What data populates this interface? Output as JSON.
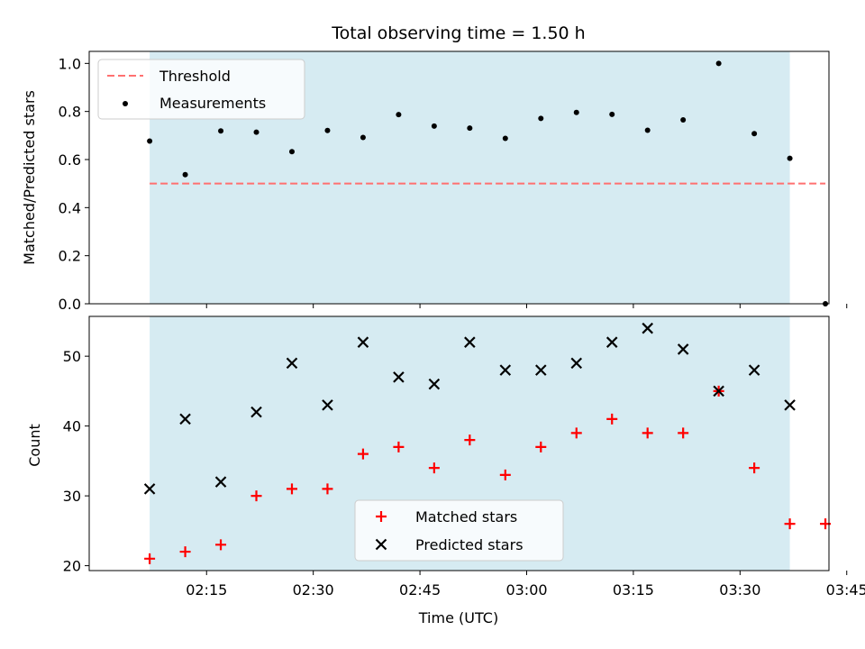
{
  "chart_data": [
    {
      "type": "scatter",
      "title": "Total observing time = 1.50 h",
      "ylabel": "Matched/Predicted stars",
      "xlabel": "",
      "ylim": [
        0,
        1.05
      ],
      "yticks": [
        0.0,
        0.2,
        0.4,
        0.6,
        0.8,
        1.0
      ],
      "ytick_labels": [
        "0.0",
        "0.2",
        "0.4",
        "0.6",
        "0.8",
        "1.0"
      ],
      "x_unit": "minutes past 02:00 UTC",
      "xlim": [
        -1.5,
        102.5
      ],
      "shaded_span": {
        "x": [
          7,
          97
        ],
        "color": "#add8e6"
      },
      "threshold": {
        "name": "Threshold",
        "y": 0.5,
        "x": [
          7,
          102
        ],
        "color": "#ff7070",
        "style": "dashed"
      },
      "series": [
        {
          "name": "Measurements",
          "color": "#000000",
          "marker": "dot",
          "x": [
            7,
            12,
            17,
            22,
            27,
            32,
            37,
            42,
            47,
            52,
            57,
            62,
            67,
            72,
            77,
            82,
            87,
            92,
            97,
            102
          ],
          "y": [
            0.677,
            0.537,
            0.719,
            0.714,
            0.633,
            0.721,
            0.692,
            0.787,
            0.739,
            0.731,
            0.688,
            0.771,
            0.796,
            0.788,
            0.722,
            0.765,
            1.0,
            0.708,
            0.605,
            0.0
          ]
        }
      ],
      "legend": {
        "location": "upper-left",
        "entries": [
          "Threshold",
          "Measurements"
        ]
      }
    },
    {
      "type": "scatter",
      "title": "",
      "ylabel": "Count",
      "xlabel": "Time (UTC)",
      "ylim": [
        19.3,
        55.7
      ],
      "yticks": [
        20,
        30,
        40,
        50
      ],
      "ytick_labels": [
        "20",
        "30",
        "40",
        "50"
      ],
      "x_unit": "minutes past 02:00 UTC",
      "xlim": [
        -1.5,
        102.5
      ],
      "xticks": [
        15,
        30,
        45,
        60,
        75,
        90,
        105
      ],
      "xtick_labels": [
        "02:15",
        "02:30",
        "02:45",
        "03:00",
        "03:15",
        "03:30",
        "03:45"
      ],
      "shaded_span": {
        "x": [
          7,
          97
        ],
        "color": "#add8e6"
      },
      "series": [
        {
          "name": "Matched stars",
          "color": "#ff0000",
          "marker": "plus",
          "x": [
            7,
            12,
            17,
            22,
            27,
            32,
            37,
            42,
            47,
            52,
            57,
            62,
            67,
            72,
            77,
            82,
            87,
            92,
            97,
            102
          ],
          "y": [
            21,
            22,
            23,
            30,
            31,
            31,
            36,
            37,
            34,
            38,
            33,
            37,
            39,
            41,
            39,
            39,
            45,
            34,
            26,
            26
          ]
        },
        {
          "name": "Predicted stars",
          "color": "#000000",
          "marker": "x",
          "x": [
            7,
            12,
            17,
            22,
            27,
            32,
            37,
            42,
            47,
            52,
            57,
            62,
            67,
            72,
            77,
            82,
            87,
            92,
            97
          ],
          "y": [
            31,
            41,
            32,
            42,
            49,
            43,
            52,
            47,
            46,
            52,
            48,
            48,
            49,
            52,
            54,
            51,
            45,
            48,
            43
          ]
        }
      ],
      "legend": {
        "location": "lower-center",
        "entries": [
          "Matched stars",
          "Predicted stars"
        ]
      }
    }
  ]
}
